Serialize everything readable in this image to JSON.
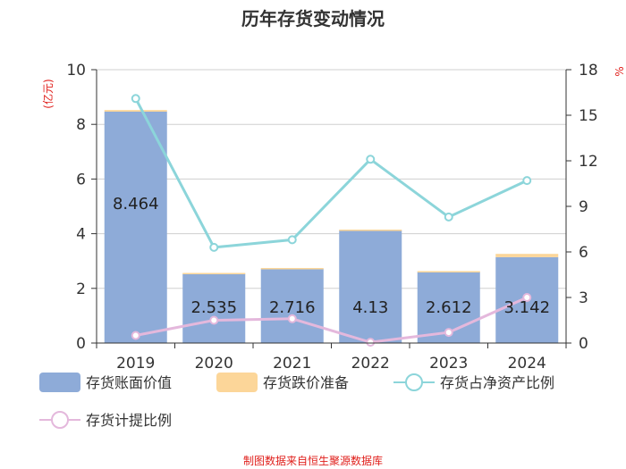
{
  "chart_data": {
    "type": "bar",
    "title": "历年存货变动情况",
    "categories": [
      "2019",
      "2020",
      "2021",
      "2022",
      "2023",
      "2024"
    ],
    "left_axis": {
      "label": "(亿元)",
      "range": [
        0,
        10
      ],
      "ticks": [
        "0",
        "2",
        "4",
        "6",
        "8",
        "10"
      ]
    },
    "right_axis": {
      "label": "%",
      "range": [
        0,
        18
      ],
      "ticks": [
        "0",
        "3",
        "6",
        "9",
        "12",
        "15",
        "18"
      ]
    },
    "series": [
      {
        "name": "存货账面价值",
        "type": "bar",
        "axis": "left",
        "color": "#8eabd8",
        "values": [
          8.464,
          2.535,
          2.716,
          4.13,
          2.612,
          3.142
        ],
        "labels": [
          "8.464",
          "2.535",
          "2.716",
          "4.13",
          "2.612",
          "3.142"
        ]
      },
      {
        "name": "存货跌价准备",
        "type": "bar-stacked",
        "axis": "left",
        "color": "#fcd699",
        "values": [
          0.06,
          0.03,
          0.03,
          0.02,
          0.02,
          0.12
        ]
      },
      {
        "name": "存货占净资产比例",
        "type": "line",
        "axis": "right",
        "color": "#8cd5da",
        "values": [
          16.1,
          6.3,
          6.8,
          12.1,
          8.3,
          10.7
        ]
      },
      {
        "name": "存货计提比例",
        "type": "line",
        "axis": "right",
        "color": "#e4b8dc",
        "values": [
          0.5,
          1.5,
          1.6,
          0.05,
          0.7,
          3.0
        ]
      }
    ],
    "grid": true,
    "legend_position": "bottom"
  },
  "footer": {
    "source": "制图数据来自恒生聚源数据库"
  }
}
